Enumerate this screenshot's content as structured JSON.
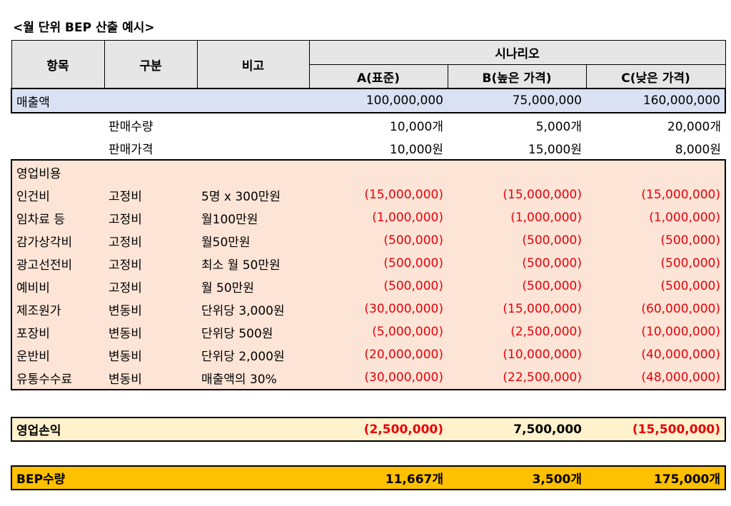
{
  "title": "<월 단위 BEP 산출 예시>",
  "header": {
    "item": "항목",
    "category": "구분",
    "note": "비고",
    "scenario": "시나리오",
    "col_a": "A(표준)",
    "col_b": "B(높은 가격)",
    "col_c": "C(낮은 가격)"
  },
  "sales": {
    "label": "매출액",
    "a": "100,000,000",
    "b": "75,000,000",
    "c": "160,000,000"
  },
  "quantity": {
    "label": "판매수량",
    "a": "10,000개",
    "b": "5,000개",
    "c": "20,000개"
  },
  "price": {
    "label": "판매가격",
    "a": "10,000원",
    "b": "15,000원",
    "c": "8,000원"
  },
  "op_costs_label": "영업비용",
  "costs": [
    {
      "item": "인건비",
      "type": "고정비",
      "note": "5명 x 300만원",
      "a": "(15,000,000)",
      "b": "(15,000,000)",
      "c": "(15,000,000)"
    },
    {
      "item": "임차료 등",
      "type": "고정비",
      "note": "월100만원",
      "a": "(1,000,000)",
      "b": "(1,000,000)",
      "c": "(1,000,000)"
    },
    {
      "item": "감가상각비",
      "type": "고정비",
      "note": "월50만원",
      "a": "(500,000)",
      "b": "(500,000)",
      "c": "(500,000)"
    },
    {
      "item": "광고선전비",
      "type": "고정비",
      "note": "최소 월 50만원",
      "a": "(500,000)",
      "b": "(500,000)",
      "c": "(500,000)"
    },
    {
      "item": "예비비",
      "type": "고정비",
      "note": "월 50만원",
      "a": "(500,000)",
      "b": "(500,000)",
      "c": "(500,000)"
    },
    {
      "item": "제조원가",
      "type": "변동비",
      "note": "단위당 3,000원",
      "a": "(30,000,000)",
      "b": "(15,000,000)",
      "c": "(60,000,000)"
    },
    {
      "item": "포장비",
      "type": "변동비",
      "note": "단위당 500원",
      "a": "(5,000,000)",
      "b": "(2,500,000)",
      "c": "(10,000,000)"
    },
    {
      "item": "운반비",
      "type": "변동비",
      "note": "단위당 2,000원",
      "a": "(20,000,000)",
      "b": "(10,000,000)",
      "c": "(40,000,000)"
    },
    {
      "item": "유통수수료",
      "type": "변동비",
      "note": "매출액의 30%",
      "a": "(30,000,000)",
      "b": "(22,500,000)",
      "c": "(48,000,000)"
    }
  ],
  "operating_profit": {
    "label": "영업손익",
    "a": "(2,500,000)",
    "b": "7,500,000",
    "c": "(15,500,000)"
  },
  "bep": {
    "label": "BEP수량",
    "a": "11,667개",
    "b": "3,500개",
    "c": "175,000개"
  },
  "colors": {
    "negative": "#e8000b",
    "sales_bg": "#d9e1f2",
    "costs_bg": "#fce4d6",
    "profit_bg": "#fff2cc",
    "bep_bg": "#ffc000",
    "header_bg": "#e7e6e6"
  }
}
